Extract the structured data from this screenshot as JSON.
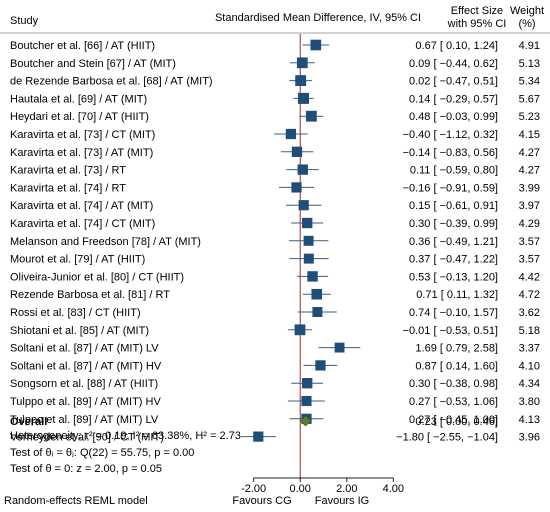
{
  "chart_data": {
    "type": "forest",
    "header": {
      "study": "Study",
      "effect_title": "Standardised Mean Difference, IV, 95% CI",
      "es_line1": "Effect Size",
      "es_line2": "with 95% CI",
      "weight_line1": "Weight",
      "weight_line2": "(%)"
    },
    "studies": [
      {
        "label": "Boutcher et al. [66] / AT (HIIT)",
        "es": 0.67,
        "lo": 0.1,
        "hi": 1.24,
        "es_text": "0.67 [  0.10,   1.24]",
        "weight": "4.91"
      },
      {
        "label": "Boutcher and Stein [67] / AT (MIT)",
        "es": 0.09,
        "lo": -0.44,
        "hi": 0.62,
        "es_text": "0.09 [ −0.44,   0.62]",
        "weight": "5.13"
      },
      {
        "label": "de Rezende Barbosa et al. [68] / AT (MIT)",
        "es": 0.02,
        "lo": -0.47,
        "hi": 0.51,
        "es_text": "0.02 [ −0.47,   0.51]",
        "weight": "5.34"
      },
      {
        "label": "Hautala et al. [69] / AT (MIT)",
        "es": 0.14,
        "lo": -0.29,
        "hi": 0.57,
        "es_text": "0.14 [ −0.29,   0.57]",
        "weight": "5.67"
      },
      {
        "label": "Heydari et al. [70] / AT (HIIT)",
        "es": 0.48,
        "lo": -0.03,
        "hi": 0.99,
        "es_text": "0.48 [ −0.03,   0.99]",
        "weight": "5.23"
      },
      {
        "label": "Karavirta et al. [73] / CT (MIT)",
        "es": -0.4,
        "lo": -1.12,
        "hi": 0.32,
        "es_text": "−0.40 [ −1.12,   0.32]",
        "weight": "4.15"
      },
      {
        "label": "Karavirta et al. [73] / AT (MIT)",
        "es": -0.14,
        "lo": -0.83,
        "hi": 0.56,
        "es_text": "−0.14 [ −0.83,   0.56]",
        "weight": "4.27"
      },
      {
        "label": "Karavirta et al. [73] / RT",
        "es": 0.11,
        "lo": -0.59,
        "hi": 0.8,
        "es_text": "0.11 [ −0.59,   0.80]",
        "weight": "4.27"
      },
      {
        "label": "Karavirta et al. [74] / RT",
        "es": -0.16,
        "lo": -0.91,
        "hi": 0.59,
        "es_text": "−0.16 [ −0.91,   0.59]",
        "weight": "3.99"
      },
      {
        "label": "Karavirta et al. [74] / AT (MIT)",
        "es": 0.15,
        "lo": -0.61,
        "hi": 0.91,
        "es_text": "0.15 [ −0.61,   0.91]",
        "weight": "3.97"
      },
      {
        "label": "Karavirta et al. [74] / CT (MIT)",
        "es": 0.3,
        "lo": -0.39,
        "hi": 0.99,
        "es_text": "0.30 [ −0.39,   0.99]",
        "weight": "4.29"
      },
      {
        "label": "Melanson and Freedson [78] / AT (MIT)",
        "es": 0.36,
        "lo": -0.49,
        "hi": 1.21,
        "es_text": "0.36 [ −0.49,   1.21]",
        "weight": "3.57"
      },
      {
        "label": "Mourot et al. [79] / AT (HIIT)",
        "es": 0.37,
        "lo": -0.47,
        "hi": 1.22,
        "es_text": "0.37 [ −0.47,   1.22]",
        "weight": "3.57"
      },
      {
        "label": "Oliveira-Junior et al. [80] / CT (HIIT)",
        "es": 0.53,
        "lo": -0.13,
        "hi": 1.2,
        "es_text": "0.53 [ −0.13,   1.20]",
        "weight": "4.42"
      },
      {
        "label": "Rezende Barbosa et al. [81] / RT",
        "es": 0.71,
        "lo": 0.11,
        "hi": 1.32,
        "es_text": "0.71 [  0.11,   1.32]",
        "weight": "4.72"
      },
      {
        "label": "Rossi et al. [83] / CT (HIIT)",
        "es": 0.74,
        "lo": -0.1,
        "hi": 1.57,
        "es_text": "0.74 [ −0.10,   1.57]",
        "weight": "3.62"
      },
      {
        "label": "Shiotani et al. [85] / AT (MIT)",
        "es": -0.01,
        "lo": -0.53,
        "hi": 0.51,
        "es_text": "−0.01 [ −0.53,   0.51]",
        "weight": "5.18"
      },
      {
        "label": "Soltani et al. [87] / AT (MIT) LV",
        "es": 1.69,
        "lo": 0.79,
        "hi": 2.58,
        "es_text": "1.69 [  0.79,   2.58]",
        "weight": "3.37"
      },
      {
        "label": "Soltani et al. [87] / AT (MIT) HV",
        "es": 0.87,
        "lo": 0.14,
        "hi": 1.6,
        "es_text": "0.87 [  0.14,   1.60]",
        "weight": "4.10"
      },
      {
        "label": "Songsorn et al. [88] / AT (HIIT)",
        "es": 0.3,
        "lo": -0.38,
        "hi": 0.98,
        "es_text": "0.30 [ −0.38,   0.98]",
        "weight": "4.34"
      },
      {
        "label": "Tulppo et al. [89] / AT (MIT) HV",
        "es": 0.27,
        "lo": -0.53,
        "hi": 1.06,
        "es_text": "0.27 [ −0.53,   1.06]",
        "weight": "3.80"
      },
      {
        "label": "Tulppo et al. [89] / AT (MIT) LV",
        "es": 0.27,
        "lo": -0.45,
        "hi": 1.0,
        "es_text": "0.27 [ −0.45,   1.00]",
        "weight": "4.13"
      },
      {
        "label": "Verheyden et al. [90] / CT (MIT)",
        "es": -1.8,
        "lo": -2.55,
        "hi": -1.04,
        "es_text": "−1.80 [ −2.55,  −1.04]",
        "weight": "3.96"
      }
    ],
    "overall": {
      "label": "Overall",
      "es": 0.23,
      "lo": 0.0,
      "hi": 0.46,
      "es_text": "0.23 [  0.00,   0.46]"
    },
    "stats": [
      "Heterogeneity: τ² = 0.19, I² = 63.38%, H² = 2.73",
      "Test of θᵢ = θⱼ: Q(22) = 55.75, p = 0.00",
      "Test of θ = 0: z = 2.00, p = 0.05"
    ],
    "x_axis": {
      "ticks": [
        -2,
        0,
        2,
        4
      ],
      "tick_labels": [
        "-2.00",
        "0.00",
        "2.00",
        "4.00"
      ],
      "xlim": [
        -2.5,
        4.2
      ]
    },
    "favours_left": "Favours CG",
    "favours_right": "Favours IG",
    "model_note": "Random-effects REML model",
    "colors": {
      "marker": "#1f4e79",
      "ci": "#3a5f8a",
      "diamond": "#5b7d2a",
      "null_line": "#9e2a2a",
      "text": "#111111"
    }
  }
}
